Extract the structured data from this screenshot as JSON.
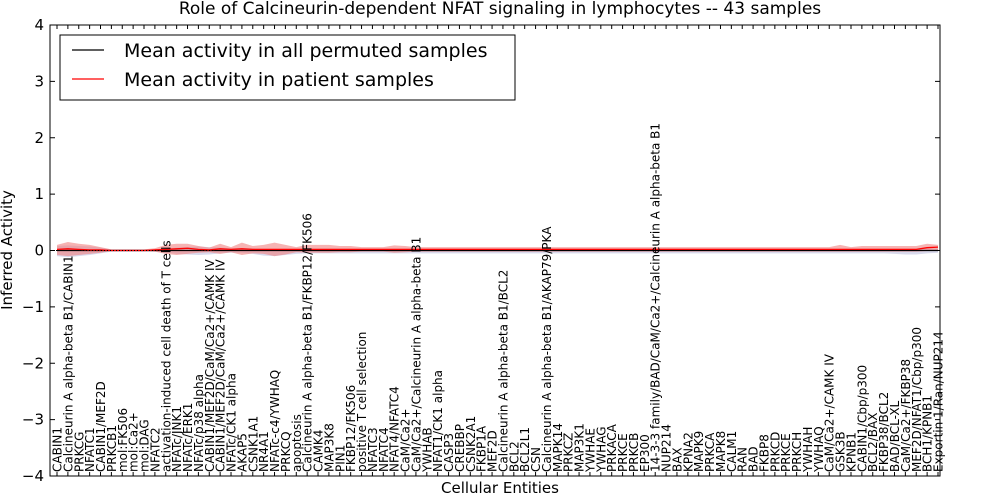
{
  "chart_data": {
    "type": "line",
    "title": "Role of Calcineurin-dependent NFAT signaling in lymphocytes -- 43 samples",
    "xlabel": "Cellular Entities",
    "ylabel": "Inferred Activity",
    "ylim": [
      -4,
      4
    ],
    "yticks": [
      "4",
      "3",
      "2",
      "1",
      "0",
      "−1",
      "−2",
      "−3",
      "−4"
    ],
    "ytick_values": [
      4,
      3,
      2,
      1,
      0,
      -1,
      -2,
      -3,
      -4
    ],
    "legend_position": "top-left",
    "categories": [
      "CABIN1",
      "Calcineurin A alpha-beta B1/CABIN1",
      "PRKCG",
      "NFATC1",
      "CABIN1/MEF2D",
      "PRKCB1",
      "mol:FK506",
      "mol:Ca2+",
      "mol:DAG",
      "NFATC2",
      "activation-induced cell death of T cells",
      "NFATc/JNK1",
      "NFATc/ERK1",
      "NFATc/p38 alpha",
      "CABIN1/MEF2D/CaM/Ca2+/CAMK IV",
      "CABIN1/MEF2D/CaM/Ca2+/CAMK IV",
      "NFATc/CK1 alpha",
      "AKAP5",
      "CSNK1A1",
      "NR4A1",
      "NFATc-c4/YWHAQ",
      "PRKCQ",
      "apoptosis",
      "Calcineurin A alpha-beta B1/FKBP12/FK506",
      "CAMK4",
      "MAP3K8",
      "PIN1",
      "FKBP12/FK506",
      "positive T cell selection",
      "NFATC3",
      "NFATC4",
      "NFAT4/NFATC4",
      "CaM/Ca2+",
      "CaM/Ca2+/Calcineurin A alpha-beta B1",
      "YWHAB",
      "NFAT1/CK1 alpha",
      "CASP3",
      "CREBBP",
      "CSNK2A1",
      "FKBP1A",
      "MEF2D",
      "Calcineurin A alpha-beta B1/BCL2",
      "BCL2",
      "BCL2L1",
      "CSN",
      "Calcineurin A alpha-beta B1/AKAP79/PKA",
      "MAPK14",
      "PRKCZ",
      "MAP3K1",
      "YWHAE",
      "YWHAG",
      "PRKACA",
      "PRKCE",
      "PRKCB",
      "EP300",
      "14-3-3 family/BAD/CaM/Ca2+/Calcineurin A alpha-beta B1",
      "NUP214",
      "BAX",
      "KPNA2",
      "MAPK9",
      "PRKCA",
      "MAPK8",
      "CALM1",
      "RAN",
      "BAD",
      "FKBP8",
      "PRKCD",
      "PRKCE",
      "PRKCH",
      "YWHAH",
      "YWHAQ",
      "CaM/Ca2+/CAMK IV",
      "GSK3B",
      "KPNB1",
      "CABIN1/Cbp/p300",
      "BCL2/BAX",
      "FKBP38/BCL2",
      "BAD/BCL-XL",
      "CaM/Ca2+/FKBP38",
      "MEF2D/NFAT1/Cbp/p300",
      "BCH1/KPNB1",
      "Exportin 1/Ran/NUP214"
    ],
    "series": [
      {
        "name": "Mean activity in all permuted samples",
        "color": "#000000",
        "values": [
          0,
          0,
          0,
          0,
          0,
          0,
          0,
          0,
          0,
          0,
          0,
          0,
          0,
          0,
          0,
          0,
          0,
          0,
          0,
          0,
          0,
          0,
          0,
          0,
          0,
          0,
          0,
          0,
          0,
          0,
          0,
          0,
          0,
          0,
          0,
          0,
          0,
          0,
          0,
          0,
          0,
          0,
          0,
          0,
          0,
          0,
          0,
          0,
          0,
          0,
          0,
          0,
          0,
          0,
          0,
          0,
          0,
          0,
          0,
          0,
          0,
          0,
          0,
          0,
          0,
          0,
          0,
          0,
          0,
          0,
          0,
          0,
          0,
          0,
          0,
          0,
          0,
          0,
          0,
          0,
          0,
          0
        ],
        "band_upper": [
          0.08,
          0.09,
          0.08,
          0.07,
          0.05,
          0.02,
          0.02,
          0.02,
          0.02,
          0.02,
          0.03,
          0.05,
          0.06,
          0.07,
          0.06,
          0.05,
          0.04,
          0.04,
          0.04,
          0.03,
          0.03,
          0.03,
          0.03,
          0.03,
          0.03,
          0.03,
          0.03,
          0.03,
          0.03,
          0.03,
          0.03,
          0.03,
          0.03,
          0.03,
          0.03,
          0.03,
          0.03,
          0.03,
          0.03,
          0.03,
          0.03,
          0.03,
          0.03,
          0.03,
          0.03,
          0.03,
          0.03,
          0.03,
          0.03,
          0.03,
          0.03,
          0.03,
          0.03,
          0.03,
          0.03,
          0.03,
          0.03,
          0.03,
          0.03,
          0.03,
          0.03,
          0.03,
          0.03,
          0.03,
          0.03,
          0.03,
          0.03,
          0.03,
          0.03,
          0.03,
          0.03,
          0.03,
          0.03,
          0.03,
          0.03,
          0.03,
          0.03,
          0.03,
          0.03,
          0.03,
          0.03,
          0.03
        ],
        "band_lower": [
          -0.1,
          -0.12,
          -0.1,
          -0.08,
          -0.05,
          -0.02,
          -0.02,
          -0.02,
          -0.02,
          -0.02,
          -0.03,
          -0.06,
          -0.07,
          -0.08,
          -0.07,
          -0.05,
          -0.04,
          -0.04,
          -0.06,
          -0.09,
          -0.1,
          -0.08,
          -0.06,
          -0.05,
          -0.05,
          -0.05,
          -0.05,
          -0.05,
          -0.05,
          -0.05,
          -0.05,
          -0.05,
          -0.05,
          -0.05,
          -0.05,
          -0.05,
          -0.05,
          -0.05,
          -0.05,
          -0.05,
          -0.05,
          -0.05,
          -0.05,
          -0.05,
          -0.05,
          -0.05,
          -0.05,
          -0.05,
          -0.05,
          -0.05,
          -0.05,
          -0.05,
          -0.05,
          -0.05,
          -0.05,
          -0.05,
          -0.05,
          -0.05,
          -0.05,
          -0.05,
          -0.05,
          -0.05,
          -0.05,
          -0.05,
          -0.05,
          -0.05,
          -0.05,
          -0.05,
          -0.05,
          -0.05,
          -0.05,
          -0.05,
          -0.05,
          -0.05,
          -0.05,
          -0.05,
          -0.05,
          -0.06,
          -0.07,
          -0.07,
          -0.05,
          -0.04
        ]
      },
      {
        "name": "Mean activity in patient samples",
        "color": "#ff0000",
        "values": [
          0.02,
          0.03,
          0.02,
          0.01,
          0.01,
          0,
          0,
          0,
          0,
          0.01,
          0.02,
          0.03,
          0.04,
          0.02,
          0.01,
          0.03,
          0.02,
          0.03,
          0.02,
          0.02,
          0.02,
          0.02,
          0.02,
          0.02,
          0.02,
          0.02,
          0.02,
          0.02,
          0.02,
          0.02,
          0.02,
          0.02,
          0.02,
          0.02,
          0.02,
          0.02,
          0.02,
          0.02,
          0.02,
          0.02,
          0.02,
          0.02,
          0.02,
          0.02,
          0.02,
          0.02,
          0.02,
          0.02,
          0.02,
          0.02,
          0.02,
          0.02,
          0.02,
          0.02,
          0.02,
          0.02,
          0.02,
          0.02,
          0.02,
          0.02,
          0.02,
          0.02,
          0.02,
          0.02,
          0.02,
          0.02,
          0.02,
          0.02,
          0.02,
          0.02,
          0.02,
          0.02,
          0.02,
          0.02,
          0.02,
          0.02,
          0.02,
          0.02,
          0.02,
          0.02,
          0.05,
          0.06
        ],
        "band_upper": [
          0.1,
          0.15,
          0.12,
          0.1,
          0.06,
          0.02,
          0.02,
          0.02,
          0.02,
          0.04,
          0.1,
          0.12,
          0.12,
          0.08,
          0.05,
          0.12,
          0.06,
          0.14,
          0.08,
          0.1,
          0.14,
          0.1,
          0.06,
          0.1,
          0.1,
          0.1,
          0.08,
          0.08,
          0.06,
          0.06,
          0.06,
          0.09,
          0.08,
          0.06,
          0.06,
          0.06,
          0.06,
          0.06,
          0.06,
          0.06,
          0.06,
          0.06,
          0.06,
          0.06,
          0.06,
          0.06,
          0.06,
          0.06,
          0.06,
          0.06,
          0.06,
          0.06,
          0.06,
          0.06,
          0.06,
          0.06,
          0.06,
          0.06,
          0.06,
          0.06,
          0.06,
          0.06,
          0.06,
          0.06,
          0.06,
          0.06,
          0.06,
          0.06,
          0.06,
          0.06,
          0.06,
          0.06,
          0.1,
          0.06,
          0.08,
          0.08,
          0.08,
          0.08,
          0.08,
          0.08,
          0.12,
          0.1
        ],
        "band_lower": [
          -0.08,
          -0.1,
          -0.08,
          -0.06,
          -0.04,
          -0.01,
          -0.01,
          -0.01,
          -0.01,
          -0.02,
          -0.06,
          -0.08,
          -0.06,
          -0.04,
          -0.03,
          -0.06,
          -0.03,
          -0.08,
          -0.05,
          -0.06,
          -0.1,
          -0.07,
          -0.03,
          -0.04,
          -0.04,
          -0.04,
          -0.03,
          -0.03,
          -0.02,
          -0.02,
          -0.02,
          -0.04,
          -0.03,
          -0.02,
          -0.02,
          -0.02,
          -0.02,
          -0.02,
          -0.02,
          -0.02,
          -0.02,
          -0.02,
          -0.02,
          -0.02,
          -0.02,
          -0.02,
          -0.02,
          -0.02,
          -0.02,
          -0.02,
          -0.02,
          -0.02,
          -0.02,
          -0.02,
          -0.02,
          -0.02,
          -0.02,
          -0.02,
          -0.02,
          -0.02,
          -0.02,
          -0.02,
          -0.02,
          -0.02,
          -0.02,
          -0.02,
          -0.02,
          -0.02,
          -0.02,
          -0.02,
          -0.02,
          -0.02,
          -0.02,
          -0.02,
          -0.02,
          -0.02,
          -0.02,
          -0.02,
          -0.02,
          -0.02,
          -0.01,
          0.01
        ]
      }
    ],
    "zero_line": "dotted"
  }
}
